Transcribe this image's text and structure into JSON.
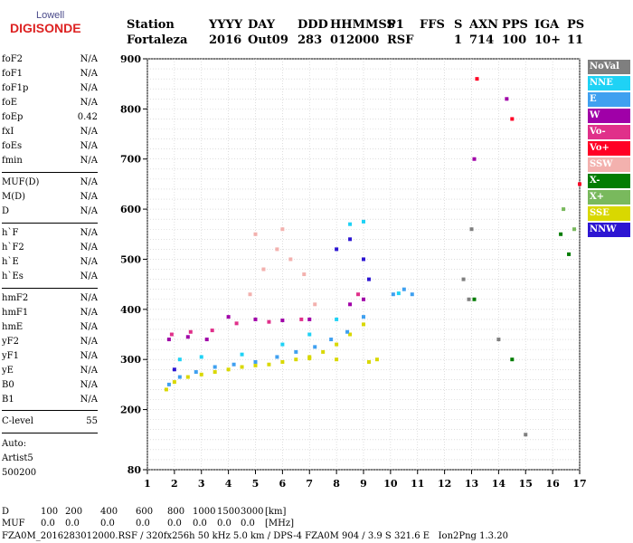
{
  "logo": {
    "top": "Lowell",
    "main": "DIGISONDE"
  },
  "header": {
    "labels": [
      "Station",
      "YYYY",
      "DAY",
      "DDD",
      "HHMMSS",
      "P1",
      "FFS",
      "S",
      "AXN",
      "PPS",
      "IGA",
      "PS"
    ],
    "values": [
      "Fortaleza",
      "2016",
      "Out09",
      "283",
      "012000",
      "RSF",
      "",
      "1",
      "714",
      "100",
      "10+",
      "11"
    ]
  },
  "params": {
    "group1": [
      {
        "name": "foF2",
        "value": "N/A"
      },
      {
        "name": "foF1",
        "value": "N/A"
      },
      {
        "name": "foF1p",
        "value": "N/A"
      },
      {
        "name": "foE",
        "value": "N/A"
      },
      {
        "name": "foEp",
        "value": "0.42"
      },
      {
        "name": "fxI",
        "value": "N/A"
      },
      {
        "name": "foEs",
        "value": "N/A"
      },
      {
        "name": "fmin",
        "value": "N/A"
      }
    ],
    "group2": [
      {
        "name": "MUF(D)",
        "value": "N/A"
      },
      {
        "name": "M(D)",
        "value": "N/A"
      },
      {
        "name": "D",
        "value": "N/A"
      }
    ],
    "group3": [
      {
        "name": "h`F",
        "value": "N/A"
      },
      {
        "name": "h`F2",
        "value": "N/A"
      },
      {
        "name": "h`E",
        "value": "N/A"
      },
      {
        "name": "h`Es",
        "value": "N/A"
      }
    ],
    "group4": [
      {
        "name": "hmF2",
        "value": "N/A"
      },
      {
        "name": "hmF1",
        "value": "N/A"
      },
      {
        "name": "hmE",
        "value": "N/A"
      },
      {
        "name": "yF2",
        "value": "N/A"
      },
      {
        "name": "yF1",
        "value": "N/A"
      },
      {
        "name": "yE",
        "value": "N/A"
      },
      {
        "name": "B0",
        "value": "N/A"
      },
      {
        "name": "B1",
        "value": "N/A"
      }
    ],
    "clevel": {
      "name": "C-level",
      "value": "55"
    },
    "auto": [
      "Auto:",
      "Artist5",
      "500200"
    ]
  },
  "legend": [
    {
      "label": "NoVal",
      "color": "#7f7f7f"
    },
    {
      "label": "NNE",
      "color": "#1fd2f5"
    },
    {
      "label": "E",
      "color": "#3fa0f0"
    },
    {
      "label": "W",
      "color": "#a000a8"
    },
    {
      "label": "Vo-",
      "color": "#e0308a"
    },
    {
      "label": "Vo+",
      "color": "#ff0025"
    },
    {
      "label": "SSW",
      "color": "#f3b1ae"
    },
    {
      "label": "X-",
      "color": "#037d03"
    },
    {
      "label": "X+",
      "color": "#79b95d"
    },
    {
      "label": "SSE",
      "color": "#d9d800"
    },
    {
      "label": "NNW",
      "color": "#2d16d2"
    }
  ],
  "chart_data": {
    "type": "scatter",
    "title": "",
    "xlabel": "",
    "ylabel": "",
    "xlim": [
      1,
      17
    ],
    "ylim": [
      80,
      900
    ],
    "xticks": [
      1,
      2,
      3,
      4,
      5,
      6,
      7,
      8,
      9,
      10,
      11,
      12,
      13,
      14,
      15,
      16,
      17
    ],
    "yticks": [
      80,
      200,
      300,
      400,
      500,
      600,
      700,
      800,
      900
    ],
    "grid": true,
    "legend_position": "right",
    "series": [
      {
        "name": "SSE",
        "color": "#d9d800",
        "points": [
          [
            1.7,
            240
          ],
          [
            2.0,
            255
          ],
          [
            2.5,
            265
          ],
          [
            3.0,
            270
          ],
          [
            3.5,
            275
          ],
          [
            4.0,
            280
          ],
          [
            4.5,
            285
          ],
          [
            5.0,
            288
          ],
          [
            5.5,
            290
          ],
          [
            6.0,
            295
          ],
          [
            6.5,
            300
          ],
          [
            7.0,
            305
          ],
          [
            7.5,
            315
          ],
          [
            8.0,
            330
          ],
          [
            8.5,
            350
          ],
          [
            9.0,
            370
          ],
          [
            9.2,
            295
          ],
          [
            9.5,
            300
          ],
          [
            8.0,
            300
          ],
          [
            7.0,
            302
          ]
        ]
      },
      {
        "name": "E",
        "color": "#3fa0f0",
        "points": [
          [
            1.8,
            250
          ],
          [
            2.2,
            265
          ],
          [
            2.8,
            275
          ],
          [
            3.5,
            285
          ],
          [
            4.2,
            290
          ],
          [
            5.0,
            295
          ],
          [
            5.8,
            305
          ],
          [
            6.5,
            315
          ],
          [
            7.2,
            325
          ],
          [
            7.8,
            340
          ],
          [
            8.4,
            355
          ],
          [
            9.0,
            385
          ],
          [
            10.1,
            430
          ],
          [
            10.5,
            440
          ],
          [
            10.8,
            430
          ]
        ]
      },
      {
        "name": "NNE",
        "color": "#1fd2f5",
        "points": [
          [
            2.2,
            300
          ],
          [
            3.0,
            305
          ],
          [
            4.5,
            310
          ],
          [
            6.0,
            330
          ],
          [
            7.0,
            350
          ],
          [
            8.0,
            380
          ],
          [
            8.5,
            570
          ],
          [
            9.0,
            575
          ],
          [
            10.3,
            432
          ]
        ]
      },
      {
        "name": "W",
        "color": "#a000a8",
        "points": [
          [
            1.8,
            340
          ],
          [
            2.5,
            345
          ],
          [
            3.2,
            340
          ],
          [
            4.0,
            385
          ],
          [
            5.0,
            380
          ],
          [
            6.0,
            378
          ],
          [
            7.0,
            380
          ],
          [
            8.5,
            410
          ],
          [
            9.0,
            420
          ],
          [
            13.1,
            700
          ],
          [
            14.3,
            820
          ]
        ]
      },
      {
        "name": "Vo-",
        "color": "#e0308a",
        "points": [
          [
            1.9,
            350
          ],
          [
            2.6,
            355
          ],
          [
            3.4,
            358
          ],
          [
            4.3,
            372
          ],
          [
            5.5,
            375
          ],
          [
            6.7,
            380
          ],
          [
            8.8,
            430
          ]
        ]
      },
      {
        "name": "SSW",
        "color": "#f3b1ae",
        "points": [
          [
            4.8,
            430
          ],
          [
            5.3,
            480
          ],
          [
            5.8,
            520
          ],
          [
            6.3,
            500
          ],
          [
            6.8,
            470
          ],
          [
            7.2,
            410
          ],
          [
            5.0,
            550
          ],
          [
            6.0,
            560
          ]
        ]
      },
      {
        "name": "NNW",
        "color": "#2d16d2",
        "points": [
          [
            8.0,
            520
          ],
          [
            8.5,
            540
          ],
          [
            9.0,
            500
          ],
          [
            9.2,
            460
          ],
          [
            2.0,
            280
          ]
        ]
      },
      {
        "name": "X-",
        "color": "#037d03",
        "points": [
          [
            16.3,
            550
          ],
          [
            16.6,
            510
          ],
          [
            13.1,
            420
          ],
          [
            14.5,
            300
          ]
        ]
      },
      {
        "name": "X+",
        "color": "#79b95d",
        "points": [
          [
            16.4,
            600
          ],
          [
            16.8,
            560
          ]
        ]
      },
      {
        "name": "Vo+",
        "color": "#ff0025",
        "points": [
          [
            13.2,
            860
          ],
          [
            14.5,
            780
          ],
          [
            17.0,
            650
          ]
        ]
      },
      {
        "name": "NoVal",
        "color": "#7f7f7f",
        "points": [
          [
            12.7,
            460
          ],
          [
            12.9,
            420
          ],
          [
            13.0,
            560
          ],
          [
            14.0,
            340
          ],
          [
            15.0,
            150
          ]
        ]
      }
    ]
  },
  "footer": {
    "d_label": "D",
    "d_values": [
      "100",
      "200",
      "400",
      "600",
      "800",
      "1000",
      "1500",
      "3000",
      "[km]"
    ],
    "muf_label": "MUF",
    "muf_values": [
      "0.0",
      "0.0",
      "0.0",
      "0.0",
      "0.0",
      "0.0",
      "0.0",
      "0.0",
      "[MHz]"
    ],
    "line3": "FZA0M_2016283012000.RSF / 320fx256h 50 kHz 5.0 km / DPS-4 FZA0M 904 / 3.9 S 321.6 E   Ion2Png 1.3.20"
  }
}
